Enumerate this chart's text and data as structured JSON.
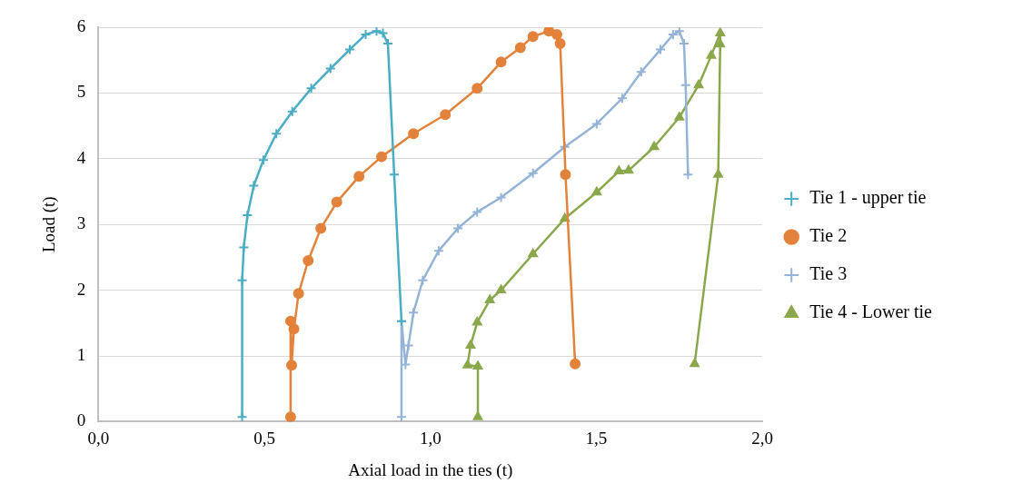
{
  "chart_data": {
    "type": "line",
    "xlabel": "Axial load in the ties (t)",
    "ylabel": "Load (t)",
    "xlim": [
      0,
      2
    ],
    "xticks": [
      {
        "value": 0,
        "label": "0,0"
      },
      {
        "value": 0.5,
        "label": "0,5"
      },
      {
        "value": 1,
        "label": "1,0"
      },
      {
        "value": 1.5,
        "label": "1,5"
      },
      {
        "value": 2,
        "label": "2,0"
      }
    ],
    "ylim": [
      0,
      6
    ],
    "yticks": [
      0,
      1,
      2,
      3,
      4,
      5,
      6
    ],
    "grid": "y",
    "legend": "right",
    "line_style": "solid",
    "series": [
      {
        "name": "Tie 1 - upper tie",
        "color": "#4bacc6",
        "marker": "cross",
        "x": [
          0.433,
          0.433,
          0.438,
          0.449,
          0.468,
          0.497,
          0.536,
          0.584,
          0.641,
          0.699,
          0.757,
          0.805,
          0.838,
          0.857,
          0.872,
          0.891,
          0.913
        ],
        "values": [
          0.07,
          2.15,
          2.65,
          3.14,
          3.59,
          3.98,
          4.38,
          4.72,
          5.07,
          5.37,
          5.66,
          5.89,
          5.94,
          5.91,
          5.75,
          3.76,
          1.53
        ]
      },
      {
        "name": "Tie 2",
        "color": "#e3823a",
        "marker": "circle",
        "x": [
          0.579,
          0.579,
          0.582,
          0.589,
          0.603,
          0.632,
          0.67,
          0.718,
          0.785,
          0.853,
          0.949,
          1.045,
          1.141,
          1.213,
          1.271,
          1.309,
          1.357,
          1.381,
          1.391,
          1.407,
          1.436
        ],
        "values": [
          0.07,
          1.53,
          0.86,
          1.41,
          1.95,
          2.45,
          2.94,
          3.34,
          3.73,
          4.03,
          4.38,
          4.67,
          5.07,
          5.47,
          5.69,
          5.86,
          5.94,
          5.89,
          5.75,
          3.76,
          0.88
        ]
      },
      {
        "name": "Tie 3",
        "color": "#95b3d7",
        "marker": "cross",
        "x": [
          0.913,
          0.913,
          0.925,
          0.934,
          0.949,
          0.977,
          1.025,
          1.083,
          1.141,
          1.213,
          1.309,
          1.405,
          1.501,
          1.578,
          1.635,
          1.693,
          1.731,
          1.75,
          1.764,
          1.769,
          1.776
        ],
        "values": [
          0.07,
          1.53,
          0.87,
          1.16,
          1.66,
          2.15,
          2.6,
          2.94,
          3.19,
          3.41,
          3.78,
          4.18,
          4.53,
          4.92,
          5.32,
          5.66,
          5.89,
          5.94,
          5.75,
          5.12,
          3.76
        ]
      },
      {
        "name": "Tie 4 - Lower tie",
        "color": "#8aa84b",
        "marker": "triangle",
        "x": [
          1.143,
          1.143,
          1.112,
          1.121,
          1.141,
          1.179,
          1.213,
          1.309,
          1.405,
          1.501,
          1.568,
          1.597,
          1.674,
          1.75,
          1.808,
          1.846,
          1.873,
          1.873,
          1.867,
          1.796
        ],
        "values": [
          0.07,
          0.84,
          0.86,
          1.16,
          1.51,
          1.85,
          2.0,
          2.55,
          3.09,
          3.49,
          3.81,
          3.82,
          4.18,
          4.63,
          5.12,
          5.57,
          5.91,
          5.74,
          3.76,
          0.88
        ]
      }
    ]
  }
}
